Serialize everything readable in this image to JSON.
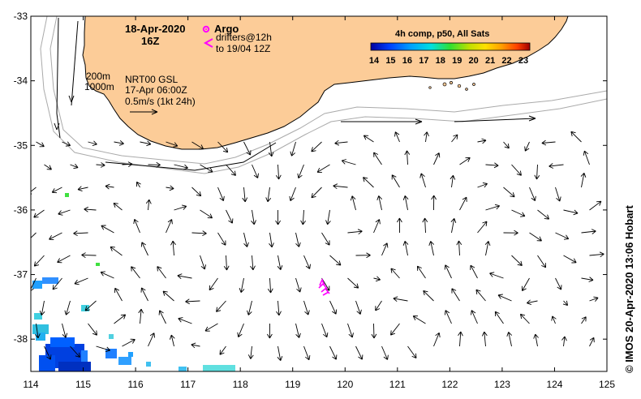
{
  "map": {
    "date_line": "18-Apr-2020",
    "time_line": "16Z",
    "argo_label": "Argo",
    "drifters_line1": "drifters@12h",
    "drifters_line2": "to 19/04 12Z",
    "depth_200": "200m",
    "depth_1000": "1000m",
    "gsl_line1": "NRT00 GSL",
    "gsl_line2": "17-Apr 06:00Z",
    "scale_line": "0.5m/s (1kt 24h)",
    "colorbar_title": "4h comp, p50, All Sats",
    "colorbar_ticks": [
      "14",
      "15",
      "16",
      "17",
      "18",
      "19",
      "20",
      "21",
      "22",
      "23"
    ],
    "credit": "© IMOS 20-Apr-2020 13:06 Hobart",
    "x_ticks": [
      "114",
      "115",
      "116",
      "117",
      "118",
      "119",
      "120",
      "121",
      "122",
      "123",
      "124",
      "125"
    ],
    "y_ticks": [
      "-33",
      "-34",
      "-35",
      "-36",
      "-37",
      "-38"
    ],
    "colors": {
      "land": "#fccc98",
      "argo_drifter": "#ff00ff",
      "contour": "#aaaaaa",
      "arrow": "#000000"
    },
    "icons": [
      "argo-float-icon",
      "drifter-track-icon"
    ]
  }
}
